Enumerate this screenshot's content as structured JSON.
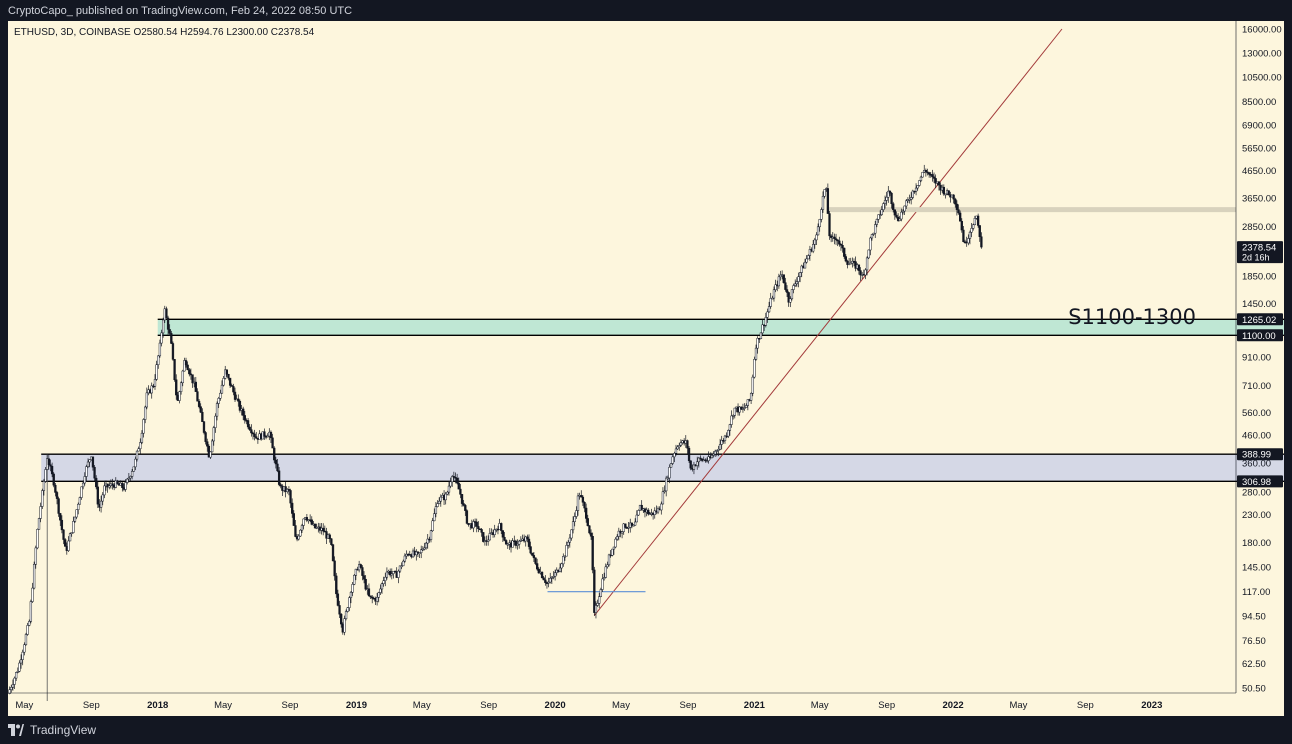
{
  "header": {
    "publisher_text": "CryptoCapo_ published on TradingView.com, Feb 24, 2022 08:50 UTC"
  },
  "legend": {
    "text": "ETHUSD, 3D, COINBASE  O2580.54  H2594.76  L2300.00  C2378.54"
  },
  "footer": {
    "brand": "TradingView"
  },
  "colors": {
    "background": "#fdf6dd",
    "candle": "#131722",
    "resistance_zone": "#bfe7d4",
    "support_zone": "#d5d8e6",
    "trendline": "#a33a3a",
    "grey_line": "#d8d2bd",
    "blue_line": "#5b8fd6"
  },
  "chart_data": {
    "type": "candlestick",
    "symbol": "ETHUSD",
    "timeframe": "3D",
    "exchange": "COINBASE",
    "last_close": 2378.54,
    "y_scale": "log",
    "ylim": [
      45,
      16000
    ],
    "price_ticks": [
      "16000.00",
      "13000.00",
      "10500.00",
      "8500.00",
      "6900.00",
      "5650.00",
      "4650.00",
      "3650.00",
      "2850.00",
      "1850.00",
      "1450.00",
      "910.00",
      "710.00",
      "560.00",
      "460.00",
      "360.00",
      "280.00",
      "230.00",
      "180.00",
      "145.00",
      "117.00",
      "94.50",
      "76.50",
      "62.50",
      "50.50"
    ],
    "x_ticks": [
      "May",
      "Sep",
      "2018",
      "May",
      "Sep",
      "2019",
      "May",
      "Sep",
      "2020",
      "May",
      "Sep",
      "2021",
      "May",
      "Sep",
      "2022",
      "May",
      "Sep",
      "2023"
    ],
    "price_badges": [
      {
        "label": "2378.54",
        "sub": "2d 16h",
        "value": 2378.54
      },
      {
        "label": "1265.02",
        "value": 1265.02
      },
      {
        "label": "1100.00",
        "value": 1100.0
      },
      {
        "label": "388.99",
        "value": 388.99
      },
      {
        "label": "306.98",
        "value": 306.98
      }
    ],
    "zones": [
      {
        "name": "S1100-1300",
        "label": "S1100-1300",
        "low": 1100.0,
        "high": 1265.02,
        "start": "2018-01",
        "end": "2023-06"
      },
      {
        "name": "support-300-390",
        "low": 306.98,
        "high": 388.99,
        "start": "2017-06",
        "end": "2023-06"
      }
    ],
    "price_series": [
      [
        "2017-04-01",
        48
      ],
      [
        "2017-04-20",
        60
      ],
      [
        "2017-05-10",
        90
      ],
      [
        "2017-05-25",
        200
      ],
      [
        "2017-06-12",
        380
      ],
      [
        "2017-06-25",
        300
      ],
      [
        "2017-07-16",
        165
      ],
      [
        "2017-08-01",
        220
      ],
      [
        "2017-08-20",
        330
      ],
      [
        "2017-09-01",
        390
      ],
      [
        "2017-09-15",
        240
      ],
      [
        "2017-09-25",
        290
      ],
      [
        "2017-10-15",
        300
      ],
      [
        "2017-11-01",
        290
      ],
      [
        "2017-11-20",
        360
      ],
      [
        "2017-12-01",
        450
      ],
      [
        "2017-12-12",
        650
      ],
      [
        "2017-12-25",
        720
      ],
      [
        "2018-01-05",
        1000
      ],
      [
        "2018-01-13",
        1400
      ],
      [
        "2018-01-25",
        1050
      ],
      [
        "2018-02-06",
        600
      ],
      [
        "2018-02-20",
        900
      ],
      [
        "2018-03-10",
        700
      ],
      [
        "2018-03-25",
        500
      ],
      [
        "2018-04-06",
        380
      ],
      [
        "2018-04-20",
        600
      ],
      [
        "2018-05-05",
        800
      ],
      [
        "2018-05-20",
        670
      ],
      [
        "2018-06-01",
        580
      ],
      [
        "2018-06-15",
        510
      ],
      [
        "2018-07-01",
        450
      ],
      [
        "2018-07-25",
        470
      ],
      [
        "2018-08-14",
        290
      ],
      [
        "2018-08-30",
        280
      ],
      [
        "2018-09-12",
        180
      ],
      [
        "2018-09-28",
        230
      ],
      [
        "2018-10-15",
        205
      ],
      [
        "2018-11-01",
        200
      ],
      [
        "2018-11-15",
        180
      ],
      [
        "2018-11-25",
        115
      ],
      [
        "2018-12-07",
        84
      ],
      [
        "2018-12-22",
        120
      ],
      [
        "2019-01-05",
        150
      ],
      [
        "2019-01-25",
        110
      ],
      [
        "2019-02-08",
        110
      ],
      [
        "2019-02-25",
        140
      ],
      [
        "2019-03-15",
        135
      ],
      [
        "2019-04-05",
        165
      ],
      [
        "2019-04-25",
        160
      ],
      [
        "2019-05-15",
        190
      ],
      [
        "2019-05-30",
        260
      ],
      [
        "2019-06-15",
        270
      ],
      [
        "2019-06-26",
        330
      ],
      [
        "2019-07-10",
        280
      ],
      [
        "2019-07-25",
        210
      ],
      [
        "2019-08-10",
        210
      ],
      [
        "2019-08-25",
        180
      ],
      [
        "2019-09-20",
        210
      ],
      [
        "2019-10-05",
        175
      ],
      [
        "2019-10-25",
        180
      ],
      [
        "2019-11-10",
        185
      ],
      [
        "2019-11-25",
        150
      ],
      [
        "2019-12-18",
        125
      ],
      [
        "2020-01-05",
        140
      ],
      [
        "2020-01-20",
        165
      ],
      [
        "2020-02-05",
        220
      ],
      [
        "2020-02-14",
        280
      ],
      [
        "2020-02-28",
        225
      ],
      [
        "2020-03-08",
        180
      ],
      [
        "2020-03-13",
        95
      ],
      [
        "2020-03-28",
        130
      ],
      [
        "2020-04-10",
        160
      ],
      [
        "2020-04-25",
        195
      ],
      [
        "2020-05-10",
        210
      ],
      [
        "2020-05-25",
        205
      ],
      [
        "2020-06-05",
        245
      ],
      [
        "2020-06-25",
        230
      ],
      [
        "2020-07-10",
        240
      ],
      [
        "2020-07-25",
        320
      ],
      [
        "2020-08-05",
        390
      ],
      [
        "2020-08-15",
        430
      ],
      [
        "2020-08-30",
        430
      ],
      [
        "2020-09-05",
        340
      ],
      [
        "2020-09-20",
        370
      ],
      [
        "2020-10-10",
        370
      ],
      [
        "2020-10-25",
        410
      ],
      [
        "2020-11-10",
        460
      ],
      [
        "2020-11-25",
        580
      ],
      [
        "2020-12-10",
        570
      ],
      [
        "2020-12-25",
        630
      ],
      [
        "2021-01-03",
        1000
      ],
      [
        "2021-01-20",
        1250
      ],
      [
        "2021-02-05",
        1600
      ],
      [
        "2021-02-20",
        1900
      ],
      [
        "2021-03-05",
        1500
      ],
      [
        "2021-03-20",
        1800
      ],
      [
        "2021-04-05",
        2100
      ],
      [
        "2021-04-25",
        2600
      ],
      [
        "2021-05-05",
        3500
      ],
      [
        "2021-05-12",
        4100
      ],
      [
        "2021-05-20",
        2500
      ],
      [
        "2021-06-01",
        2600
      ],
      [
        "2021-06-20",
        2100
      ],
      [
        "2021-07-10",
        2000
      ],
      [
        "2021-07-20",
        1800
      ],
      [
        "2021-08-01",
        2500
      ],
      [
        "2021-08-20",
        3200
      ],
      [
        "2021-09-05",
        3900
      ],
      [
        "2021-09-20",
        3000
      ],
      [
        "2021-10-05",
        3400
      ],
      [
        "2021-10-20",
        3900
      ],
      [
        "2021-11-01",
        4300
      ],
      [
        "2021-11-10",
        4700
      ],
      [
        "2021-11-25",
        4300
      ],
      [
        "2021-12-05",
        4100
      ],
      [
        "2021-12-20",
        3800
      ],
      [
        "2022-01-02",
        3700
      ],
      [
        "2022-01-12",
        3200
      ],
      [
        "2022-01-22",
        2400
      ],
      [
        "2022-02-05",
        2900
      ],
      [
        "2022-02-12",
        3100
      ],
      [
        "2022-02-24",
        2378.54
      ]
    ],
    "lines": [
      {
        "name": "trendline",
        "from": [
          "2020-03-13",
          95
        ],
        "to": [
          "2022-07-20",
          16000
        ]
      },
      {
        "name": "grey-resistance",
        "from": [
          "2021-05-15",
          3300
        ],
        "to": [
          "2023-06-01",
          3300
        ]
      },
      {
        "name": "march-2020-low",
        "from": [
          "2019-12-18",
          117
        ],
        "to": [
          "2020-06-15",
          117
        ]
      },
      {
        "name": "vertical-marker",
        "from": [
          "2017-06-12",
          388.99
        ],
        "to": [
          "2017-06-12",
          45
        ]
      }
    ]
  }
}
